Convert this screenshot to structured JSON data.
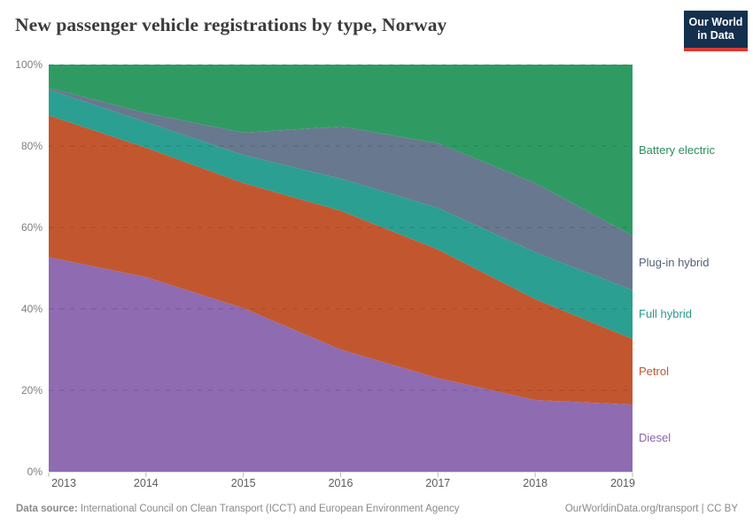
{
  "header": {
    "title": "New passenger vehicle registrations by type, Norway"
  },
  "logo": {
    "line1": "Our World",
    "line2": "in Data",
    "bg_color": "#14304e",
    "bar_color": "#d93a32"
  },
  "chart_data": {
    "type": "area",
    "stacked": true,
    "title": "New passenger vehicle registrations by type, Norway",
    "unit": "%",
    "x": [
      2013,
      2014,
      2015,
      2016,
      2017,
      2018,
      2019
    ],
    "series": [
      {
        "name": "Diesel",
        "color": "#8f6bb1",
        "label_color": "#8a63ad",
        "values": [
          52.7,
          47.8,
          40.2,
          30.0,
          23.0,
          17.6,
          16.5
        ]
      },
      {
        "name": "Petrol",
        "color": "#c2572f",
        "label_color": "#bd562e",
        "values": [
          34.8,
          31.8,
          30.7,
          34.1,
          31.6,
          24.8,
          16.1
        ]
      },
      {
        "name": "Full hybrid",
        "color": "#2b9f92",
        "label_color": "#2a998c",
        "values": [
          6.3,
          6.3,
          6.9,
          7.9,
          10.2,
          11.5,
          12.0
        ]
      },
      {
        "name": "Plug-in hybrid",
        "color": "#68788f",
        "label_color": "#51617a",
        "values": [
          0.5,
          2.2,
          5.5,
          12.8,
          15.9,
          17.0,
          13.4
        ]
      },
      {
        "name": "Battery electric",
        "color": "#2f9b63",
        "label_color": "#2a8f5c",
        "values": [
          5.7,
          11.9,
          16.7,
          15.2,
          19.3,
          29.1,
          42.0
        ]
      }
    ],
    "ylim": [
      0,
      100
    ],
    "yticks": [
      {
        "v": 0,
        "label": "0%"
      },
      {
        "v": 20,
        "label": "20%"
      },
      {
        "v": 40,
        "label": "40%"
      },
      {
        "v": 60,
        "label": "60%"
      },
      {
        "v": 80,
        "label": "80%"
      },
      {
        "v": 100,
        "label": "100%"
      }
    ],
    "grid": true,
    "legend_position": "right"
  },
  "footer": {
    "source_label": "Data source:",
    "source_text": " International Council on Clean Transport (ICCT) and European Environment Agency",
    "credit": "OurWorldinData.org/transport | CC BY"
  }
}
